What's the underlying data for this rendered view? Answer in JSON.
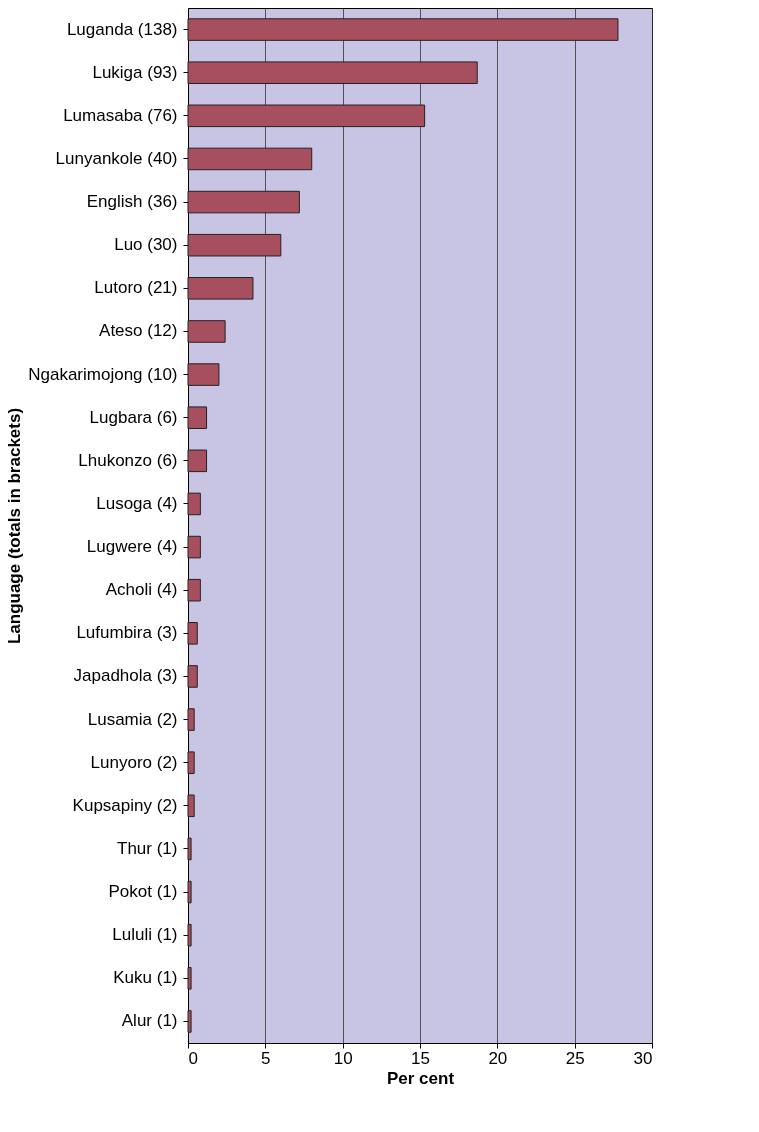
{
  "chart_data": {
    "type": "bar",
    "orientation": "horizontal",
    "xlabel": "Per cent",
    "ylabel": "Language (totals in brackets)",
    "categories": [
      "Luganda (138)",
      "Lukiga (93)",
      "Lumasaba (76)",
      "Lunyankole (40)",
      "English (36)",
      "Luo (30)",
      "Lutoro (21)",
      "Ateso (12)",
      "Ngakarimojong (10)",
      "Lugbara (6)",
      "Lhukonzo (6)",
      "Lusoga (4)",
      "Lugwere (4)",
      "Acholi (4)",
      "Lufumbira (3)",
      "Japadhola (3)",
      "Lusamia (2)",
      "Lunyoro (2)",
      "Kupsapiny (2)",
      "Thur (1)",
      "Pokot (1)",
      "Lululi (1)",
      "Kuku (1)",
      "Alur (1)"
    ],
    "values": [
      27.8,
      18.7,
      15.3,
      8.0,
      7.2,
      6.0,
      4.2,
      2.4,
      2.0,
      1.2,
      1.2,
      0.8,
      0.8,
      0.8,
      0.6,
      0.6,
      0.4,
      0.4,
      0.4,
      0.2,
      0.2,
      0.2,
      0.2,
      0.2
    ],
    "color": "#a84f5f",
    "xlim": [
      0,
      30
    ],
    "xticks": [
      0,
      5,
      10,
      15,
      20,
      25,
      30
    ],
    "grid": "x"
  }
}
